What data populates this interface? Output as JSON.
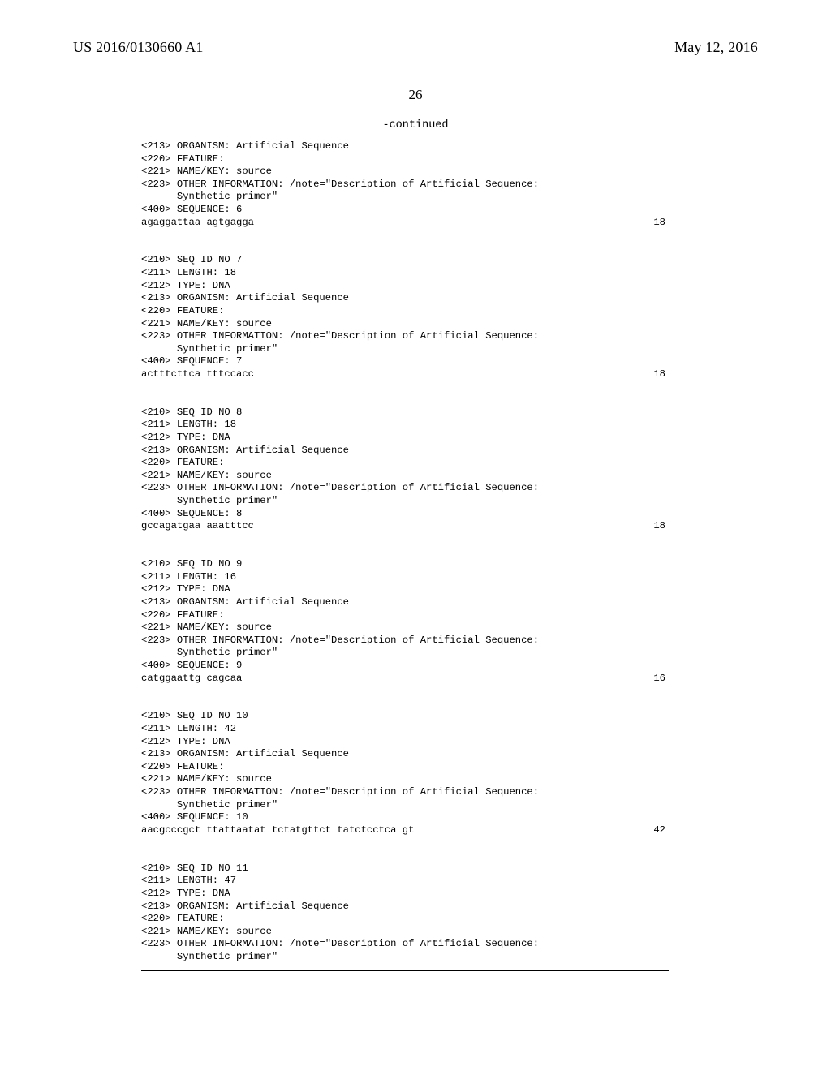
{
  "header": {
    "pubnum": "US 2016/0130660 A1",
    "pubdate": "May 12, 2016"
  },
  "page_number": "26",
  "continued_label": "-continued",
  "sequences": [
    {
      "lines": [
        "<213> ORGANISM: Artificial Sequence",
        "<220> FEATURE:",
        "<221> NAME/KEY: source",
        "<223> OTHER INFORMATION: /note=\"Description of Artificial Sequence:",
        "      Synthetic primer\"",
        "",
        "<400> SEQUENCE: 6",
        ""
      ],
      "seq_text": "agaggattaa agtgagga",
      "seq_len": "18"
    },
    {
      "lines": [
        "<210> SEQ ID NO 7",
        "<211> LENGTH: 18",
        "<212> TYPE: DNA",
        "<213> ORGANISM: Artificial Sequence",
        "<220> FEATURE:",
        "<221> NAME/KEY: source",
        "<223> OTHER INFORMATION: /note=\"Description of Artificial Sequence:",
        "      Synthetic primer\"",
        "",
        "<400> SEQUENCE: 7",
        ""
      ],
      "seq_text": "actttcttca tttccacc",
      "seq_len": "18"
    },
    {
      "lines": [
        "<210> SEQ ID NO 8",
        "<211> LENGTH: 18",
        "<212> TYPE: DNA",
        "<213> ORGANISM: Artificial Sequence",
        "<220> FEATURE:",
        "<221> NAME/KEY: source",
        "<223> OTHER INFORMATION: /note=\"Description of Artificial Sequence:",
        "      Synthetic primer\"",
        "",
        "<400> SEQUENCE: 8",
        ""
      ],
      "seq_text": "gccagatgaa aaatttcc",
      "seq_len": "18"
    },
    {
      "lines": [
        "<210> SEQ ID NO 9",
        "<211> LENGTH: 16",
        "<212> TYPE: DNA",
        "<213> ORGANISM: Artificial Sequence",
        "<220> FEATURE:",
        "<221> NAME/KEY: source",
        "<223> OTHER INFORMATION: /note=\"Description of Artificial Sequence:",
        "      Synthetic primer\"",
        "",
        "<400> SEQUENCE: 9",
        ""
      ],
      "seq_text": "catggaattg cagcaa",
      "seq_len": "16"
    },
    {
      "lines": [
        "<210> SEQ ID NO 10",
        "<211> LENGTH: 42",
        "<212> TYPE: DNA",
        "<213> ORGANISM: Artificial Sequence",
        "<220> FEATURE:",
        "<221> NAME/KEY: source",
        "<223> OTHER INFORMATION: /note=\"Description of Artificial Sequence:",
        "      Synthetic primer\"",
        "",
        "<400> SEQUENCE: 10",
        ""
      ],
      "seq_text": "aacgcccgct ttattaatat tctatgttct tatctcctca gt",
      "seq_len": "42"
    },
    {
      "lines": [
        "<210> SEQ ID NO 11",
        "<211> LENGTH: 47",
        "<212> TYPE: DNA",
        "<213> ORGANISM: Artificial Sequence",
        "<220> FEATURE:",
        "<221> NAME/KEY: source",
        "<223> OTHER INFORMATION: /note=\"Description of Artificial Sequence:",
        "      Synthetic primer\""
      ],
      "seq_text": null,
      "seq_len": null
    }
  ]
}
